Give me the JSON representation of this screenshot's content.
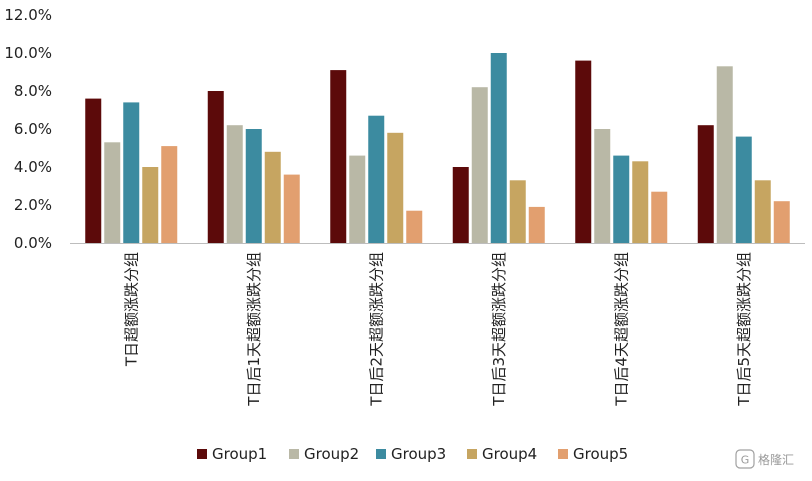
{
  "chart_data": {
    "type": "bar",
    "title": "",
    "xlabel": "",
    "ylabel": "",
    "ylim": [
      0,
      0.12
    ],
    "yticks": [
      "0.0%",
      "2.0%",
      "4.0%",
      "6.0%",
      "8.0%",
      "10.0%",
      "12.0%"
    ],
    "grid": false,
    "legend_position": "bottom",
    "categories": [
      "T日超额涨跌分组",
      "T日后1天超额涨跌分组",
      "T日后2天超额涨跌分组",
      "T日后3天超额涨跌分组",
      "T日后4天超额涨跌分组",
      "T日后5天超额涨跌分组"
    ],
    "series": [
      {
        "name": "Group1",
        "color": "#5c0a0a",
        "values": [
          0.076,
          0.08,
          0.091,
          0.04,
          0.096,
          0.062
        ]
      },
      {
        "name": "Group2",
        "color": "#b9b8a6",
        "values": [
          0.053,
          0.062,
          0.046,
          0.082,
          0.06,
          0.093
        ]
      },
      {
        "name": "Group3",
        "color": "#3c8ba0",
        "values": [
          0.074,
          0.06,
          0.067,
          0.1,
          0.046,
          0.056
        ]
      },
      {
        "name": "Group4",
        "color": "#c6a561",
        "values": [
          0.04,
          0.048,
          0.058,
          0.033,
          0.043,
          0.033
        ]
      },
      {
        "name": "Group5",
        "color": "#e29f6f",
        "values": [
          0.051,
          0.036,
          0.017,
          0.019,
          0.027,
          0.022
        ]
      }
    ]
  },
  "watermark": {
    "text": "格隆汇",
    "icon": "glh-logo-icon"
  }
}
